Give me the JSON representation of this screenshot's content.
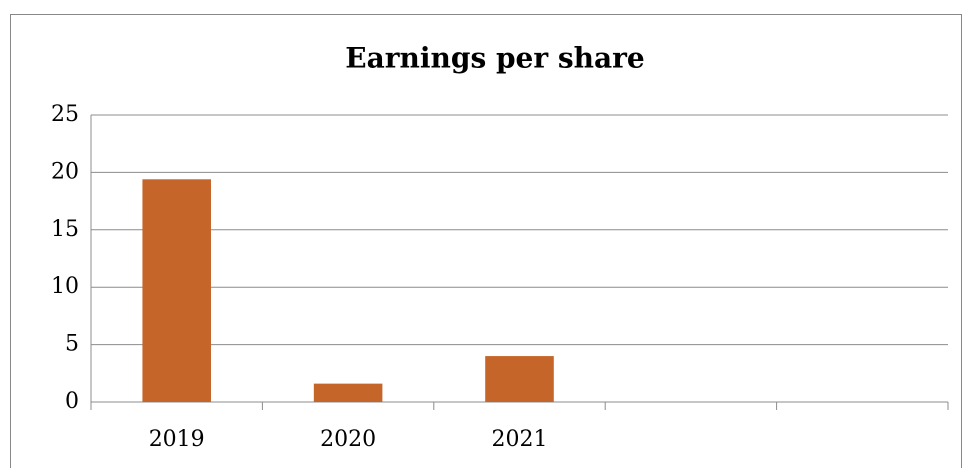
{
  "chart_data": {
    "type": "bar",
    "title": "Earnings per share",
    "categories": [
      "2019",
      "2020",
      "2021",
      null,
      null
    ],
    "values": [
      19.4,
      1.6,
      4,
      null,
      null
    ],
    "color": "#c5652a",
    "ylim": [
      0,
      25
    ],
    "yticks": [
      0,
      5,
      10,
      15,
      20,
      25
    ],
    "grid": true
  }
}
